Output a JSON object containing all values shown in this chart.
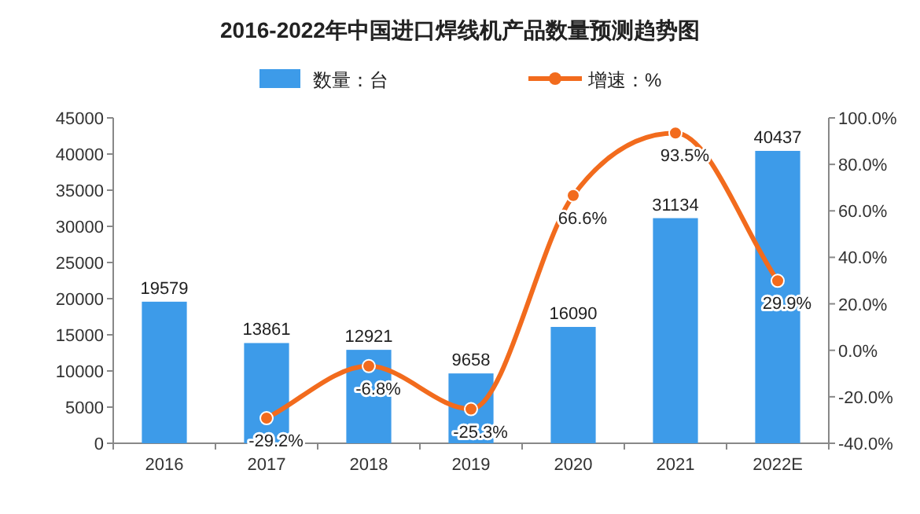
{
  "chart_data": {
    "type": "bar",
    "title": "2016-2022年中国进口焊线机产品数量预测趋势图",
    "categories": [
      "2016",
      "2017",
      "2018",
      "2019",
      "2020",
      "2021",
      "2022E"
    ],
    "series": [
      {
        "name": "数量：台",
        "color": "#3d9be9",
        "values": [
          19579,
          13861,
          12921,
          9658,
          16090,
          31134,
          40437
        ],
        "value_labels": [
          "19579",
          "13861",
          "12921",
          "9658",
          "16090",
          "31134",
          "40437"
        ]
      },
      {
        "name": "增速：%",
        "type": "line",
        "axis": "y2",
        "color": "#f26b1d",
        "marker": "circle",
        "values": [
          null,
          -29.2,
          -6.8,
          -25.3,
          66.6,
          93.5,
          29.9
        ],
        "value_labels": [
          null,
          "-29.2%",
          "-6.8%",
          "-25.3%",
          "66.6%",
          "93.5%",
          "29.9%"
        ]
      }
    ],
    "ylim": [
      0,
      45000
    ],
    "yticks": [
      0,
      5000,
      10000,
      15000,
      20000,
      25000,
      30000,
      35000,
      40000,
      45000
    ],
    "y2lim": [
      -40,
      100
    ],
    "y2ticks": [
      {
        "value": -40,
        "label": "-40.0%"
      },
      {
        "value": -20,
        "label": "-20.0%"
      },
      {
        "value": 0,
        "label": "0.0%"
      },
      {
        "value": 20,
        "label": "20.0%"
      },
      {
        "value": 40,
        "label": "40.0%"
      },
      {
        "value": 60,
        "label": "60.0%"
      },
      {
        "value": 80,
        "label": "80.0%"
      },
      {
        "value": 100,
        "label": "100.0%"
      }
    ],
    "legend": "top",
    "grid": false
  }
}
